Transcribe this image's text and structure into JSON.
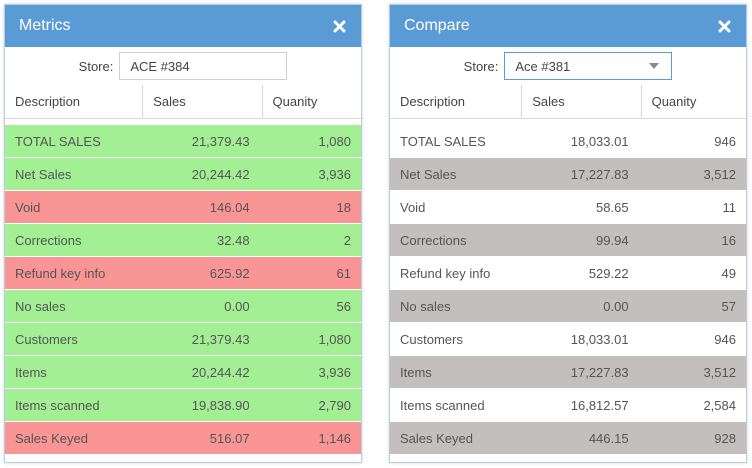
{
  "metrics": {
    "title": "Metrics",
    "store_label": "Store:",
    "store_value": "ACE #384",
    "columns": [
      "Description",
      "Sales",
      "Quanity"
    ],
    "rows": [
      {
        "desc": "TOTAL SALES",
        "sales": "21,379.43",
        "qty": "1,080",
        "status": "green"
      },
      {
        "desc": "Net Sales",
        "sales": "20,244.42",
        "qty": "3,936",
        "status": "green"
      },
      {
        "desc": "Void",
        "sales": "146.04",
        "qty": "18",
        "status": "red"
      },
      {
        "desc": "Corrections",
        "sales": "32.48",
        "qty": "2",
        "status": "green"
      },
      {
        "desc": "Refund key info",
        "sales": "625.92",
        "qty": "61",
        "status": "red"
      },
      {
        "desc": "No sales",
        "sales": "0.00",
        "qty": "56",
        "status": "green"
      },
      {
        "desc": "Customers",
        "sales": "21,379.43",
        "qty": "1,080",
        "status": "green"
      },
      {
        "desc": "Items",
        "sales": "20,244.42",
        "qty": "3,936",
        "status": "green"
      },
      {
        "desc": "Items scanned",
        "sales": "19,838.90",
        "qty": "2,790",
        "status": "green"
      },
      {
        "desc": "Sales Keyed",
        "sales": "516.07",
        "qty": "1,146",
        "status": "red"
      }
    ]
  },
  "compare": {
    "title": "Compare",
    "store_label": "Store:",
    "store_value": "Ace #381",
    "columns": [
      "Description",
      "Sales",
      "Quanity"
    ],
    "rows": [
      {
        "desc": "TOTAL SALES",
        "sales": "18,033.01",
        "qty": "946",
        "status": "white"
      },
      {
        "desc": "Net Sales",
        "sales": "17,227.83",
        "qty": "3,512",
        "status": "grey"
      },
      {
        "desc": "Void",
        "sales": "58.65",
        "qty": "11",
        "status": "white"
      },
      {
        "desc": "Corrections",
        "sales": "99.94",
        "qty": "16",
        "status": "grey"
      },
      {
        "desc": "Refund key info",
        "sales": "529.22",
        "qty": "49",
        "status": "white"
      },
      {
        "desc": "No sales",
        "sales": "0.00",
        "qty": "57",
        "status": "grey"
      },
      {
        "desc": "Customers",
        "sales": "18,033.01",
        "qty": "946",
        "status": "white"
      },
      {
        "desc": "Items",
        "sales": "17,227.83",
        "qty": "3,512",
        "status": "grey"
      },
      {
        "desc": "Items scanned",
        "sales": "16,812.57",
        "qty": "2,584",
        "status": "white"
      },
      {
        "desc": "Sales Keyed",
        "sales": "446.15",
        "qty": "928",
        "status": "grey"
      }
    ]
  },
  "icons": {
    "close": "close-icon",
    "dropdown": "chevron-down-icon"
  },
  "colors": {
    "header": "#5b9bd5",
    "good": "#a3ef94",
    "bad": "#f99594",
    "stripe": "#c3bfbe"
  }
}
